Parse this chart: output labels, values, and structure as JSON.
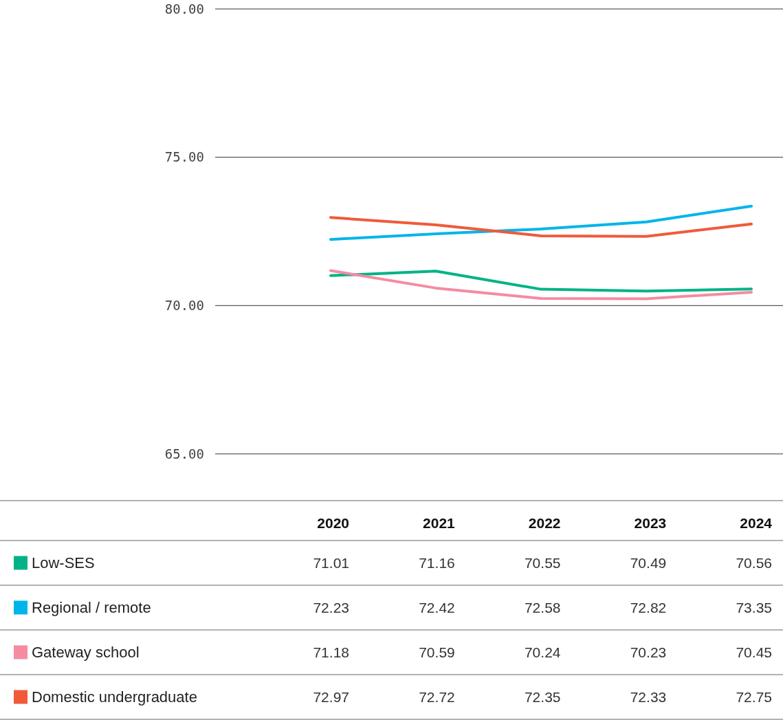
{
  "chart_data": {
    "type": "line",
    "categories": [
      "2020",
      "2021",
      "2022",
      "2023",
      "2024"
    ],
    "series": [
      {
        "name": "Low-SES",
        "color": "#00b386",
        "values": [
          71.01,
          71.16,
          70.55,
          70.49,
          70.56
        ]
      },
      {
        "name": "Regional / remote",
        "color": "#00b5e9",
        "values": [
          72.23,
          72.42,
          72.58,
          72.82,
          73.35
        ]
      },
      {
        "name": "Gateway school",
        "color": "#f48ba1",
        "values": [
          71.18,
          70.59,
          70.24,
          70.23,
          70.45
        ]
      },
      {
        "name": "Domestic undergraduate",
        "color": "#f05a3a",
        "values": [
          72.97,
          72.72,
          72.35,
          72.33,
          72.75
        ]
      }
    ],
    "ylim": [
      65,
      80
    ],
    "yticks": [
      {
        "value": 65,
        "label": "65.00"
      },
      {
        "value": 70,
        "label": "70.00"
      },
      {
        "value": 75,
        "label": "75.00"
      },
      {
        "value": 80,
        "label": "80.00"
      }
    ],
    "grid": "y",
    "legend": "bottom",
    "data_labels": true,
    "marker": "none",
    "line_style": "solid"
  }
}
